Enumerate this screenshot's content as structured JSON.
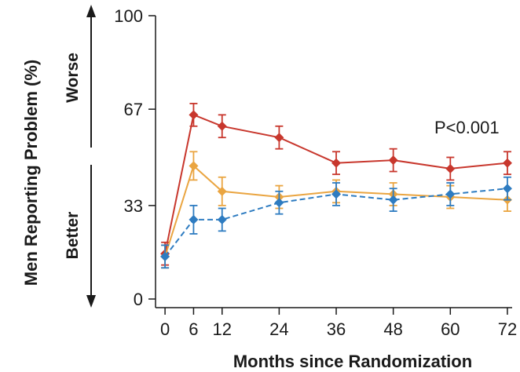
{
  "chart_data": {
    "type": "line",
    "title": "",
    "xlabel": "Months since Randomization",
    "ylabel": "Men Reporting Problem (%)",
    "direction_labels": {
      "worse": "Worse",
      "better": "Better"
    },
    "annotation": "P<0.001",
    "x": [
      0,
      6,
      12,
      24,
      36,
      48,
      60,
      72
    ],
    "xticks": [
      0,
      6,
      12,
      24,
      36,
      48,
      60,
      72
    ],
    "xtick_labels": [
      "0",
      "6",
      "12",
      "24",
      "36",
      "48",
      "60",
      "72"
    ],
    "yticks": [
      0,
      33,
      67,
      100
    ],
    "ytick_labels": [
      "0",
      "33",
      "67",
      "100"
    ],
    "xlim": [
      -2,
      73
    ],
    "ylim": [
      0,
      100
    ],
    "grid": false,
    "series": [
      {
        "color": "#c8372d",
        "dashed": false,
        "values": [
          16,
          65,
          61,
          57,
          48,
          49,
          46,
          48
        ],
        "error": [
          4,
          4,
          4,
          4,
          4,
          4,
          4,
          4
        ]
      },
      {
        "color": "#eaa541",
        "dashed": false,
        "values": [
          15,
          47,
          38,
          36,
          38,
          37,
          36,
          35
        ],
        "error": [
          4,
          5,
          5,
          4,
          4,
          4,
          4,
          4
        ]
      },
      {
        "color": "#2e7cc1",
        "dashed": true,
        "values": [
          15,
          28,
          28,
          34,
          37,
          35,
          37,
          39
        ],
        "error": [
          4,
          5,
          4,
          4,
          4,
          4,
          4,
          4
        ]
      }
    ]
  }
}
